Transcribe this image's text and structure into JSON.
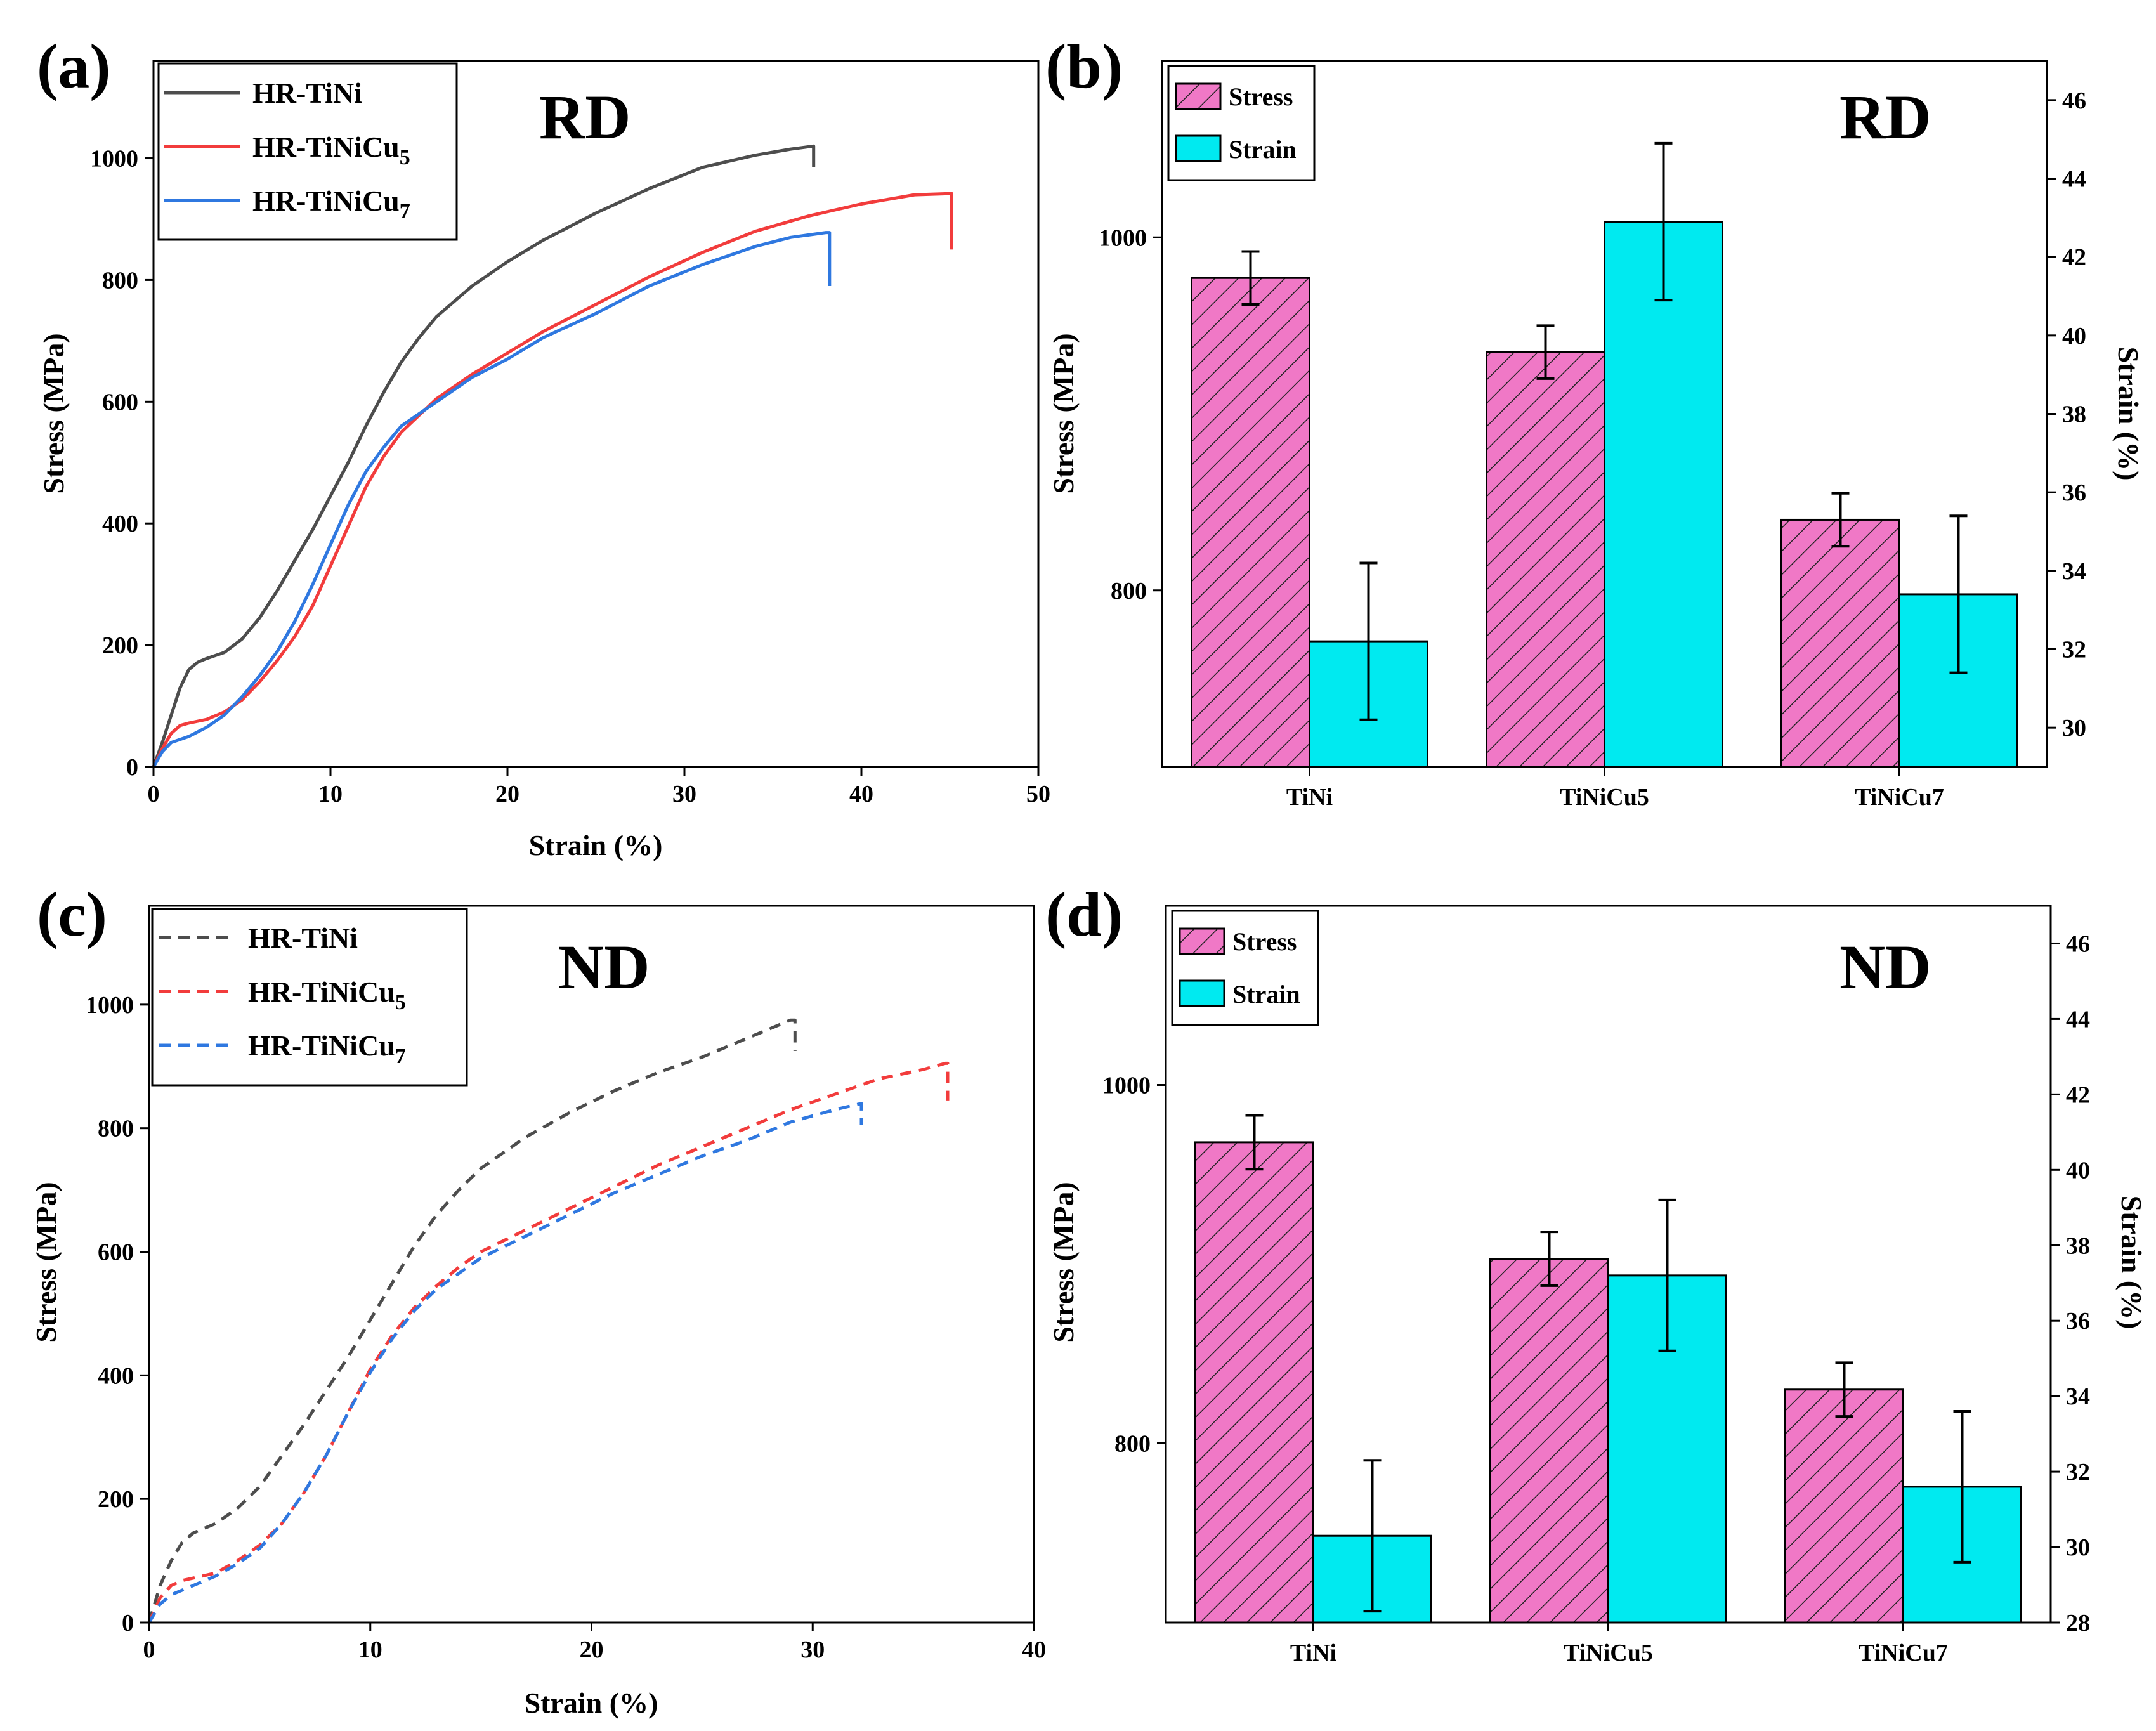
{
  "colors": {
    "tini": "#4d4d4d",
    "tinicu5": "#f23c3c",
    "tinicu7": "#2f78e0",
    "stress_fill": "#f078c6",
    "strain_fill": "#00eaf0"
  },
  "chart_data": [
    {
      "type": "line",
      "panel": "(a)",
      "corner_label": "RD",
      "xlabel": "Strain (%)",
      "ylabel": "Stress (MPa)",
      "xlim": [
        0,
        50
      ],
      "ylim": [
        0,
        1160
      ],
      "xticks": [
        0,
        10,
        20,
        30,
        40,
        50
      ],
      "yticks": [
        0,
        200,
        400,
        600,
        800,
        1000
      ],
      "dashed": false,
      "legend": {
        "placement": "top-left",
        "entries": [
          {
            "base": "HR-TiNi",
            "sub": ""
          },
          {
            "base": "HR-TiNiCu",
            "sub": "5"
          },
          {
            "base": "HR-TiNiCu",
            "sub": "7"
          }
        ]
      },
      "series": [
        {
          "name": "HR-TiNi",
          "color_key": "tini",
          "x": [
            0,
            0.5,
            1,
            1.5,
            2,
            2.5,
            3,
            4,
            5,
            6,
            7,
            8,
            9,
            10,
            11,
            12,
            13,
            14,
            15,
            16,
            18,
            20,
            22,
            25,
            28,
            31,
            34,
            36,
            37.3,
            37.3
          ],
          "y": [
            0,
            40,
            85,
            130,
            160,
            172,
            178,
            188,
            210,
            245,
            290,
            340,
            390,
            445,
            500,
            560,
            615,
            665,
            705,
            740,
            790,
            830,
            865,
            910,
            950,
            985,
            1005,
            1015,
            1020,
            985
          ]
        },
        {
          "name": "HR-TiNiCu5",
          "color_key": "tinicu5",
          "x": [
            0,
            0.5,
            1,
            1.5,
            2,
            3,
            4,
            5,
            6,
            7,
            8,
            9,
            10,
            11,
            12,
            13,
            14,
            16,
            18,
            20,
            22,
            25,
            28,
            31,
            34,
            37,
            40,
            43,
            45,
            45.1,
            45.1
          ],
          "y": [
            0,
            30,
            55,
            68,
            72,
            78,
            90,
            110,
            140,
            175,
            215,
            265,
            330,
            395,
            460,
            510,
            550,
            605,
            645,
            680,
            715,
            760,
            805,
            845,
            880,
            905,
            925,
            940,
            942,
            942,
            850
          ]
        },
        {
          "name": "HR-TiNiCu7",
          "color_key": "tinicu7",
          "x": [
            0,
            0.5,
            1,
            2,
            3,
            4,
            5,
            6,
            7,
            8,
            9,
            10,
            11,
            12,
            13,
            14,
            16,
            18,
            20,
            22,
            25,
            28,
            31,
            34,
            36,
            38,
            38.2,
            38.2
          ],
          "y": [
            0,
            25,
            40,
            50,
            65,
            85,
            115,
            150,
            190,
            240,
            300,
            365,
            430,
            485,
            525,
            560,
            600,
            640,
            670,
            705,
            745,
            790,
            825,
            855,
            870,
            878,
            878,
            790
          ]
        }
      ]
    },
    {
      "type": "bar",
      "panel": "(b)",
      "corner_label": "RD",
      "categories": [
        "TiNi",
        "TiNiCu5",
        "TiNiCu7"
      ],
      "ylabel": "Stress (MPa)",
      "y2label": "Strain (%)",
      "ylim": [
        700,
        1100
      ],
      "y2lim": [
        29,
        47
      ],
      "yticks": [
        800,
        1000
      ],
      "y2ticks": [
        30,
        32,
        34,
        36,
        38,
        40,
        42,
        44,
        46
      ],
      "legend": {
        "placement": "top-left",
        "entries": [
          "Stress",
          "Strain"
        ]
      },
      "series": [
        {
          "name": "Stress",
          "axis": "left",
          "values": [
            977,
            935,
            840
          ],
          "errors": [
            15,
            15,
            15
          ]
        },
        {
          "name": "Strain",
          "axis": "right",
          "values": [
            32.2,
            42.9,
            33.4
          ],
          "errors": [
            2.0,
            2.0,
            2.0
          ]
        }
      ]
    },
    {
      "type": "line",
      "panel": "(c)",
      "corner_label": "ND",
      "xlabel": "Strain (%)",
      "ylabel": "Stress (MPa)",
      "xlim": [
        0,
        40
      ],
      "ylim": [
        0,
        1160
      ],
      "xticks": [
        0,
        10,
        20,
        30,
        40
      ],
      "yticks": [
        0,
        200,
        400,
        600,
        800,
        1000
      ],
      "dashed": true,
      "legend": {
        "placement": "top-left",
        "entries": [
          {
            "base": "HR-TiNi",
            "sub": ""
          },
          {
            "base": "HR-TiNiCu",
            "sub": "5"
          },
          {
            "base": "HR-TiNiCu",
            "sub": "7"
          }
        ]
      },
      "series": [
        {
          "name": "HR-TiNi",
          "color_key": "tini",
          "x": [
            0,
            0.5,
            1,
            1.5,
            2,
            3,
            4,
            5,
            6,
            7,
            8,
            9,
            10,
            11,
            12,
            13,
            14,
            15,
            17,
            19,
            21,
            23,
            25,
            27,
            29,
            29.2,
            29.2
          ],
          "y": [
            0,
            60,
            100,
            130,
            145,
            160,
            185,
            220,
            270,
            320,
            375,
            430,
            490,
            550,
            610,
            660,
            700,
            735,
            785,
            825,
            860,
            890,
            915,
            945,
            975,
            975,
            925
          ]
        },
        {
          "name": "HR-TiNiCu5",
          "color_key": "tinicu5",
          "x": [
            0,
            0.5,
            1,
            1.5,
            2,
            3,
            4,
            5,
            6,
            7,
            8,
            9,
            10,
            11,
            12,
            13,
            14,
            15,
            17,
            19,
            21,
            23,
            25,
            27,
            29,
            31,
            33,
            35,
            36,
            36.1,
            36.1
          ],
          "y": [
            0,
            40,
            60,
            68,
            72,
            80,
            100,
            125,
            160,
            210,
            270,
            340,
            410,
            465,
            510,
            545,
            575,
            600,
            635,
            670,
            705,
            740,
            770,
            800,
            830,
            855,
            880,
            895,
            905,
            905,
            845
          ]
        },
        {
          "name": "HR-TiNiCu7",
          "color_key": "tinicu7",
          "x": [
            0,
            0.5,
            1,
            2,
            3,
            4,
            5,
            6,
            7,
            8,
            9,
            10,
            11,
            12,
            13,
            14,
            15,
            17,
            19,
            21,
            23,
            25,
            27,
            29,
            31,
            32.2,
            32.2
          ],
          "y": [
            0,
            30,
            45,
            60,
            75,
            95,
            120,
            160,
            210,
            270,
            340,
            405,
            460,
            505,
            540,
            565,
            590,
            625,
            660,
            695,
            725,
            755,
            780,
            810,
            830,
            840,
            805
          ]
        }
      ]
    },
    {
      "type": "bar",
      "panel": "(d)",
      "corner_label": "ND",
      "categories": [
        "TiNi",
        "TiNiCu5",
        "TiNiCu7"
      ],
      "ylabel": "Stress (MPa)",
      "y2label": "Strain (%)",
      "ylim": [
        700,
        1100
      ],
      "y2lim": [
        28,
        47
      ],
      "yticks": [
        800,
        1000
      ],
      "y2ticks": [
        28,
        30,
        32,
        34,
        36,
        38,
        40,
        42,
        44,
        46
      ],
      "legend": {
        "placement": "top-left",
        "entries": [
          "Stress",
          "Strain"
        ]
      },
      "series": [
        {
          "name": "Stress",
          "axis": "left",
          "values": [
            968,
            903,
            830
          ],
          "errors": [
            15,
            15,
            15
          ]
        },
        {
          "name": "Strain",
          "axis": "right",
          "values": [
            30.3,
            37.2,
            31.6
          ],
          "errors": [
            2.0,
            2.0,
            2.0
          ]
        }
      ]
    }
  ]
}
